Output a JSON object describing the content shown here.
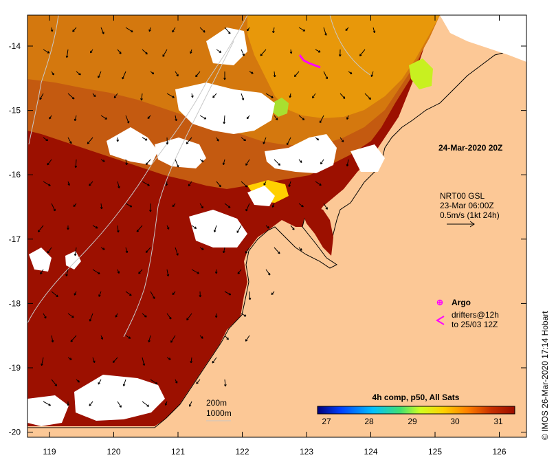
{
  "map": {
    "x_ticks": [
      "119",
      "120",
      "121",
      "122",
      "123",
      "124",
      "125",
      "126"
    ],
    "y_ticks": [
      "-14",
      "-15",
      "-16",
      "-17",
      "-18",
      "-19",
      "-20"
    ]
  },
  "labels": {
    "timestamp": "24-Mar-2020 20Z",
    "current_model": "NRT00 GSL",
    "current_time": "23-Mar 06:00Z",
    "current_scale": "0.5m/s (1kt 24h)",
    "argo_label": "Argo",
    "drifters_line1": "drifters@12h",
    "drifters_line2": "to 25/03 12Z",
    "scale_200m": "200m",
    "scale_1000m": "1000m",
    "credit": "© IMOS 26-Mar-2020 17:14 Hobart"
  },
  "colorbar": {
    "title": "4h comp, p50, All Sats",
    "ticks": [
      "27",
      "28",
      "29",
      "30",
      "31"
    ],
    "colors": [
      "#00007a",
      "#0040ff",
      "#00c0ff",
      "#40e070",
      "#d0ff20",
      "#ffd000",
      "#ff8000",
      "#c83000",
      "#9a0d00"
    ]
  },
  "colors": {
    "land": "#fcc896",
    "sst_hot": "#9c1000",
    "sst_warm": "#c45a10",
    "sst_mid": "#d4780e",
    "sst_light": "#e8980a",
    "cloud": "#ffffff",
    "drifter": "#ff00ff"
  }
}
